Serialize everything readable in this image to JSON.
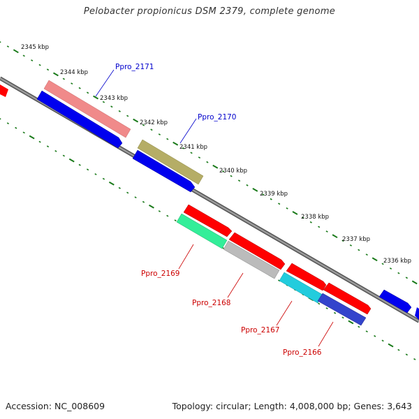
{
  "title": "Pelobacter propionicus DSM 2379, complete genome",
  "footer": {
    "accession": "Accession: NC_008609",
    "genome_info": "Topology: circular; Length: 4,008,000 bp; Genes: 3,643"
  },
  "colors": {
    "backbone": "#777777",
    "ruler": "#1a7a1a",
    "forward_label": "#0000cc",
    "reverse_label": "#cc0000"
  },
  "ruler_labels": [
    "2345 kbp",
    "2344 kbp",
    "2343 kbp",
    "2342 kbp",
    "2341 kbp",
    "2340 kbp",
    "2339 kbp",
    "2338 kbp",
    "2337 kbp",
    "2336 kbp"
  ],
  "forward_genes": [
    {
      "label": "Ppro_2171",
      "color": "#f08a8a"
    },
    {
      "label": "Ppro_2170",
      "color": "#b5ad66"
    }
  ],
  "reverse_genes": [
    {
      "label": "Ppro_2169",
      "color": "#33ee99"
    },
    {
      "label": "Ppro_2168",
      "color": "#bbbbbb"
    },
    {
      "label": "Ppro_2167",
      "color": "#22ccdd"
    },
    {
      "label": "Ppro_2166",
      "color": "#3344cc"
    }
  ],
  "other_gene_colors": [
    "#ff0000",
    "#0000ff"
  ]
}
